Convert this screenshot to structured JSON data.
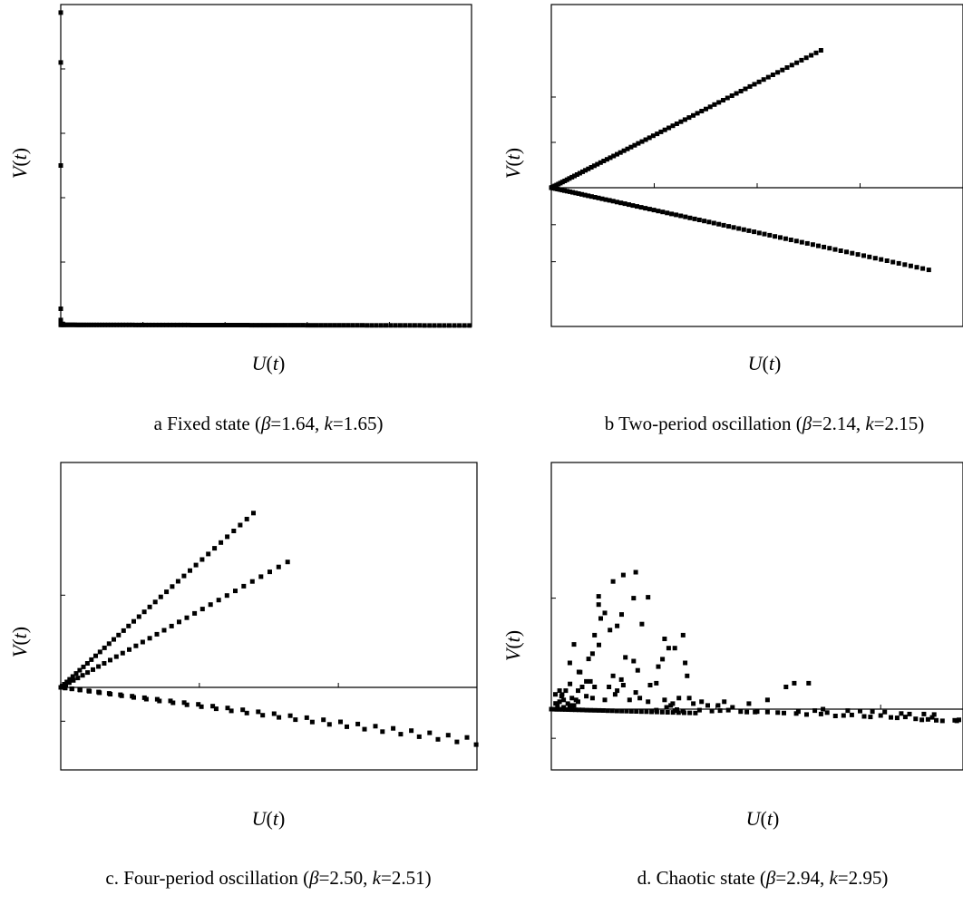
{
  "chart_data": [
    {
      "id": "a",
      "type": "scatter",
      "title": "",
      "caption": {
        "prefix": "a Fixed state (",
        "beta": "1.64",
        "k": "1.65"
      },
      "xlabel": {
        "var": "U",
        "arg": "t"
      },
      "ylabel": {
        "var": "V",
        "arg": "t"
      },
      "xlim": [
        0,
        1
      ],
      "ylim": [
        0,
        1
      ],
      "grid": false,
      "series": [
        {
          "values": {
            "rays": [
              {
                "from": [
                  0,
                  0.005
                ],
                "to": [
                  0.995,
                  0.003
                ],
                "n": 110
              }
            ],
            "points": [
              [
                0,
                0.975
              ],
              [
                0,
                0.82
              ],
              [
                0,
                0.5
              ],
              [
                0,
                0.055
              ],
              [
                0,
                0.02
              ],
              [
                0,
                0.012
              ],
              [
                0.005,
                0.008
              ]
            ]
          }
        }
      ]
    },
    {
      "id": "b",
      "type": "scatter",
      "title": "",
      "caption": {
        "prefix": "b Two-period oscillation (",
        "beta": "2.14",
        "k": "2.15"
      },
      "xlabel": {
        "var": "U",
        "arg": "t"
      },
      "ylabel": {
        "var": "V",
        "arg": "t"
      },
      "xlim": [
        0,
        1
      ],
      "ylim": [
        -1,
        1
      ],
      "grid": false,
      "series": [
        {
          "values": {
            "rays": [
              {
                "from": [
                  0,
                  0
                ],
                "to": [
                  0.655,
                  1.01
                ],
                "n": 75
              },
              {
                "from": [
                  0,
                  0
                ],
                "to": [
                  0.917,
                  -0.74
                ],
                "n": 85
              }
            ],
            "points": []
          }
        }
      ]
    },
    {
      "id": "c",
      "type": "scatter",
      "title": "",
      "caption": {
        "prefix": "c. Four-period oscillation (",
        "beta": "2.50",
        "k": "2.51"
      },
      "xlabel": {
        "var": "U",
        "arg": "t"
      },
      "ylabel": {
        "var": "V",
        "arg": "t"
      },
      "xlim": [
        0,
        1
      ],
      "ylim": [
        -1,
        1
      ],
      "grid": false,
      "series": [
        {
          "values": {
            "rays": [
              {
                "from": [
                  0,
                  0
                ],
                "to": [
                  0.463,
                  0.945
                ],
                "n": 40
              },
              {
                "from": [
                  0,
                  0
                ],
                "to": [
                  0.545,
                  0.68
                ],
                "n": 35
              },
              {
                "from": [
                  0,
                  0
                ],
                "to": [
                  0.998,
                  -0.845
                ],
                "n": 30
              },
              {
                "from": [
                  0,
                  0
                ],
                "to": [
                  0.976,
                  -0.74
                ],
                "n": 30
              }
            ],
            "points": []
          }
        }
      ]
    },
    {
      "id": "d",
      "type": "scatter",
      "title": "",
      "caption": {
        "prefix": "d. Chaotic state (",
        "beta": "2.94",
        "k": "2.95"
      },
      "xlabel": {
        "var": "U",
        "arg": "t"
      },
      "ylabel": {
        "var": "V",
        "arg": "t"
      },
      "xlim": [
        0,
        1
      ],
      "ylim": [
        -1,
        1
      ],
      "grid": false,
      "series": [
        {
          "values": {
            "rays": [
              {
                "from": [
                  0,
                  0
                ],
                "to": [
                  0.35,
                  -0.08
                ],
                "n": 35
              },
              {
                "from": [
                  0,
                  0
                ],
                "to": [
                  0.2,
                  0.6
                ],
                "n": 10
              }
            ],
            "points": [
              [
                0.175,
                0.725
              ],
              [
                0.205,
                0.74
              ],
              [
                0.235,
                0.605
              ],
              [
                0.15,
                0.69
              ],
              [
                0.16,
                0.45
              ],
              [
                0.13,
                0.52
              ],
              [
                0.22,
                0.46
              ],
              [
                0.32,
                0.4
              ],
              [
                0.325,
                0.25
              ],
              [
                0.115,
                0.61
              ],
              [
                0.115,
                0.565
              ],
              [
                0.12,
                0.49
              ],
              [
                0.105,
                0.4
              ],
              [
                0.1,
                0.3
              ],
              [
                0.055,
                0.35
              ],
              [
                0.045,
                0.25
              ],
              [
                0.065,
                0.1
              ],
              [
                0.275,
                0.38
              ],
              [
                0.285,
                0.33
              ],
              [
                0.27,
                0.27
              ],
              [
                0.3,
                0.33
              ],
              [
                0.26,
                0.23
              ],
              [
                0.255,
                0.14
              ],
              [
                0.24,
                0.13
              ],
              [
                0.2,
                0.26
              ],
              [
                0.21,
                0.21
              ],
              [
                0.18,
                0.28
              ],
              [
                0.17,
                0.16
              ],
              [
                0.15,
                0.18
              ],
              [
                0.14,
                0.12
              ],
              [
                0.095,
                0.15
              ],
              [
                0.085,
                0.07
              ],
              [
                0.07,
                0.2
              ],
              [
                0.33,
                0.18
              ],
              [
                0.31,
                0.06
              ],
              [
                0.215,
                0.06
              ],
              [
                0.365,
                0.04
              ],
              [
                0.28,
                0.01
              ],
              [
                0.1,
                0.06
              ],
              [
                0.03,
                0.05
              ],
              [
                0.02,
                0.1
              ],
              [
                0.05,
                0.06
              ],
              [
                0.04,
                0.03
              ],
              [
                0.065,
                0.04
              ],
              [
                0.235,
                0.04
              ],
              [
                0.19,
                0.05
              ],
              [
                0.13,
                0.05
              ],
              [
                0.155,
                0.08
              ],
              [
                0.16,
                0.1
              ],
              [
                0.085,
                0.15
              ],
              [
                0.175,
                0.13
              ],
              [
                0.205,
                0.09
              ],
              [
                0.105,
                0.12
              ],
              [
                0.075,
                0.12
              ],
              [
                0.02,
                0.04
              ],
              [
                0.01,
                0.08
              ],
              [
                0.015,
                0.02
              ],
              [
                0.025,
                0.07
              ],
              [
                0.035,
                0.1
              ],
              [
                0.055,
                0.02
              ],
              [
                0.06,
                0.05
              ],
              [
                0.045,
                0.02
              ],
              [
                0.03,
                0.01
              ],
              [
                0.275,
                0.05
              ],
              [
                0.255,
                -0.02
              ],
              [
                0.295,
                0.03
              ],
              [
                0.335,
                0.06
              ],
              [
                0.29,
                0.02
              ],
              [
                0.345,
                0.03
              ],
              [
                0.41,
                -0.03
              ],
              [
                0.42,
                0.04
              ],
              [
                0.39,
                -0.04
              ],
              [
                0.57,
                0.12
              ],
              [
                0.59,
                0.14
              ],
              [
                0.625,
                0.14
              ],
              [
                0.72,
                -0.03
              ],
              [
                0.525,
                0.05
              ],
              [
                0.405,
                0.02
              ],
              [
                0.43,
                -0.02
              ],
              [
                0.46,
                -0.05
              ],
              [
                0.475,
                -0.06
              ],
              [
                0.495,
                -0.06
              ],
              [
                0.5,
                -0.05
              ],
              [
                0.525,
                -0.06
              ],
              [
                0.55,
                -0.07
              ],
              [
                0.565,
                -0.08
              ],
              [
                0.595,
                -0.09
              ],
              [
                0.62,
                -0.11
              ],
              [
                0.655,
                -0.1
              ],
              [
                0.67,
                -0.07
              ],
              [
                0.69,
                -0.14
              ],
              [
                0.71,
                -0.13
              ],
              [
                0.73,
                -0.12
              ],
              [
                0.76,
                -0.15
              ],
              [
                0.775,
                -0.16
              ],
              [
                0.8,
                -0.13
              ],
              [
                0.825,
                -0.17
              ],
              [
                0.84,
                -0.18
              ],
              [
                0.86,
                -0.16
              ],
              [
                0.885,
                -0.2
              ],
              [
                0.9,
                -0.22
              ],
              [
                0.915,
                -0.21
              ],
              [
                0.925,
                -0.17
              ],
              [
                0.935,
                -0.23
              ],
              [
                0.95,
                -0.24
              ],
              [
                0.98,
                -0.23
              ],
              [
                0.985,
                -0.24
              ],
              [
                0.99,
                -0.22
              ],
              [
                0.85,
                -0.09
              ],
              [
                0.87,
                -0.1
              ],
              [
                0.905,
                -0.1
              ],
              [
                0.93,
                -0.11
              ],
              [
                0.78,
                -0.05
              ],
              [
                0.81,
                -0.06
              ],
              [
                0.75,
                -0.04
              ],
              [
                0.6,
                -0.05
              ],
              [
                0.64,
                -0.03
              ],
              [
                0.66,
                0.0
              ],
              [
                0.48,
                0.03
              ],
              [
                0.44,
                0.01
              ],
              [
                0.38,
                0.02
              ],
              [
                0.36,
                -0.02
              ],
              [
                0.32,
                -0.04
              ],
              [
                0.3,
                -0.03
              ],
              [
                0.305,
                -0.01
              ]
            ]
          }
        }
      ]
    }
  ]
}
